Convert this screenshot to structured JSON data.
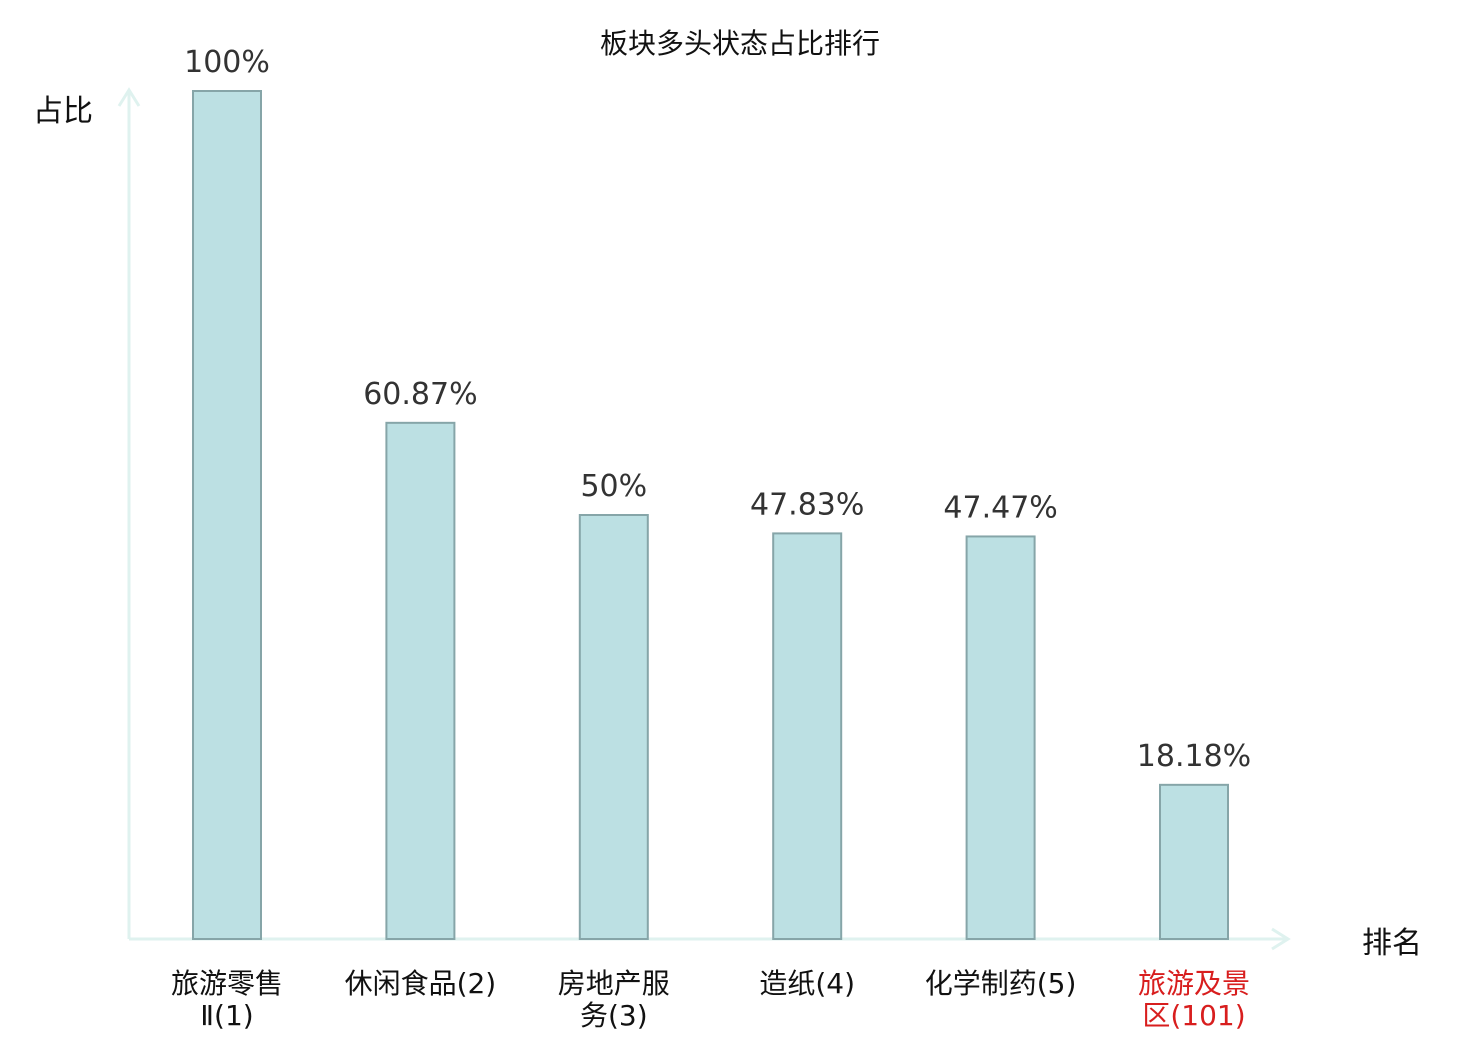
{
  "chart_data": {
    "type": "bar",
    "title": "板块多头状态占比排行",
    "ylabel": "占比",
    "xlabel": "排名",
    "ylim": [
      0,
      100
    ],
    "grid": false,
    "legend": "none",
    "categories": [
      {
        "lines": [
          "旅游零售",
          "Ⅱ(1)"
        ],
        "highlight": false
      },
      {
        "lines": [
          "休闲食品(2)"
        ],
        "highlight": false
      },
      {
        "lines": [
          "房地产服",
          "务(3)"
        ],
        "highlight": false
      },
      {
        "lines": [
          "造纸(4)"
        ],
        "highlight": false
      },
      {
        "lines": [
          "化学制药(5)"
        ],
        "highlight": false
      },
      {
        "lines": [
          "旅游及景",
          "区(101)"
        ],
        "highlight": true
      }
    ],
    "values": [
      100,
      60.87,
      50,
      47.83,
      47.47,
      18.18
    ],
    "value_labels": [
      "100%",
      "60.87%",
      "50%",
      "47.83%",
      "47.47%",
      "18.18%"
    ],
    "colors": {
      "bar_fill": "#bce0e3",
      "bar_stroke": "#86a5a8",
      "axis": "#dff2ef",
      "text": "#111111",
      "value_text": "#333333",
      "highlight_text": "#d81e1e"
    }
  }
}
